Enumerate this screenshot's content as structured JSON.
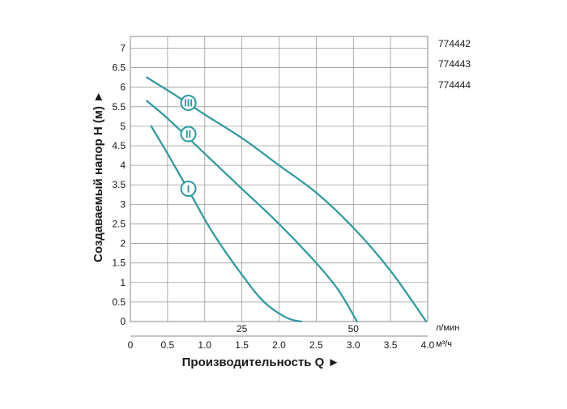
{
  "chart_data": {
    "type": "line",
    "ylabel": "Создаваемый напор Н (м) ►",
    "xlabel": "Производительность Q ►",
    "y_ticks": [
      "0",
      "0.5",
      "1",
      "1.5",
      "2",
      "2.5",
      "3",
      "3.5",
      "4",
      "4.5",
      "5",
      "5.5",
      "6",
      "6.5",
      "7"
    ],
    "x_ticks": [
      "0",
      "0.5",
      "1.0",
      "1.5",
      "2.0",
      "2.5",
      "3.0",
      "3.5",
      "4.0"
    ],
    "x_tick_values": [
      0,
      0.5,
      1.0,
      1.5,
      2.0,
      2.5,
      3.0,
      3.5,
      4.0
    ],
    "xlim": [
      0,
      4.0
    ],
    "ylim": [
      0,
      7.3
    ],
    "x_unit": "м³/ч",
    "secondary_x_unit": "л/мин",
    "secondary_x_ticks": [
      {
        "label": "25",
        "value": 1.5
      },
      {
        "label": "50",
        "value": 3.0
      }
    ],
    "grid": true,
    "line_color": "#2a9aa0",
    "models": [
      "774442",
      "774443",
      "774444"
    ],
    "series": [
      {
        "name": "I",
        "marker_at": [
          0.78,
          3.4
        ],
        "points": [
          [
            0.28,
            5.0
          ],
          [
            0.5,
            4.3
          ],
          [
            0.8,
            3.3
          ],
          [
            1.1,
            2.3
          ],
          [
            1.5,
            1.2
          ],
          [
            1.8,
            0.5
          ],
          [
            2.1,
            0.1
          ],
          [
            2.3,
            0.0
          ]
        ]
      },
      {
        "name": "II",
        "marker_at": [
          0.78,
          4.8
        ],
        "points": [
          [
            0.22,
            5.65
          ],
          [
            0.5,
            5.2
          ],
          [
            1.0,
            4.3
          ],
          [
            1.5,
            3.4
          ],
          [
            2.0,
            2.5
          ],
          [
            2.5,
            1.5
          ],
          [
            2.8,
            0.8
          ],
          [
            3.05,
            0.0
          ]
        ]
      },
      {
        "name": "III",
        "marker_at": [
          0.78,
          5.6
        ],
        "points": [
          [
            0.22,
            6.25
          ],
          [
            0.6,
            5.8
          ],
          [
            1.0,
            5.3
          ],
          [
            1.5,
            4.7
          ],
          [
            2.0,
            4.0
          ],
          [
            2.5,
            3.3
          ],
          [
            3.0,
            2.4
          ],
          [
            3.5,
            1.3
          ],
          [
            3.98,
            0.0
          ]
        ]
      }
    ]
  }
}
